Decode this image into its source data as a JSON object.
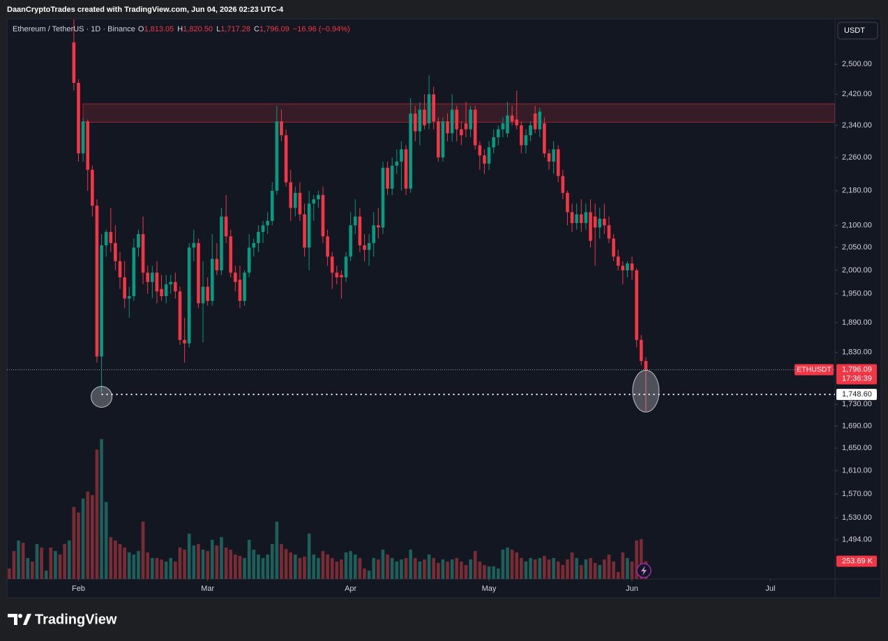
{
  "header": {
    "credit": "DaanCryptoTrades created with TradingView.com, Jun 04, 2026 02:23 UTC-4"
  },
  "brand": "TradingView",
  "chart_data": {
    "type": "candlestick",
    "title": "Ethereum / TetherUS · 1D · Binance",
    "legend": [
      {
        "key": "O",
        "value": 1813.05,
        "label": "1,813.05"
      },
      {
        "key": "H",
        "value": 1820.5,
        "label": "1,820.50"
      },
      {
        "key": "L",
        "value": 1717.28,
        "label": "1,717.28"
      },
      {
        "key": "C",
        "value": 1796.09,
        "label": "1,796.09"
      }
    ],
    "change": {
      "value": -16.96,
      "label": "−16.96"
    },
    "change_pct": {
      "value": -0.94,
      "label": "(−0.94%)"
    },
    "currency": "USDT",
    "symbol": "ETHUSDT",
    "countdown": "17:36:39",
    "last_price": {
      "value": 1796.09,
      "label": "1,796.09"
    },
    "level": {
      "value": 1748.6,
      "label": "1,748.60"
    },
    "zone": {
      "low": 2348,
      "high": 2395,
      "from": 16
    },
    "highlighted_candles": [
      20,
      138
    ],
    "up_color": "#089981",
    "down_color": "#f23645",
    "log": true,
    "grid": false,
    "xlim": [
      -0.5,
      179
    ],
    "ylim": [
      1432,
      2624
    ],
    "xticks": [
      {
        "value": 15,
        "label": "Feb"
      },
      {
        "value": 43,
        "label": "Mar"
      },
      {
        "value": 74,
        "label": "Apr"
      },
      {
        "value": 104,
        "label": "May"
      },
      {
        "value": 135,
        "label": "Jun"
      },
      {
        "value": 165,
        "label": "Jul"
      }
    ],
    "yticks": [
      {
        "value": 2500,
        "label": "2,500.00"
      },
      {
        "value": 2420,
        "label": "2,420.00"
      },
      {
        "value": 2340,
        "label": "2,340.00"
      },
      {
        "value": 2260,
        "label": "2,260.00"
      },
      {
        "value": 2180,
        "label": "2,180.00"
      },
      {
        "value": 2100,
        "label": "2,100.00"
      },
      {
        "value": 2050,
        "label": "2,050.00"
      },
      {
        "value": 2000,
        "label": "2,000.00"
      },
      {
        "value": 1950,
        "label": "1,950.00"
      },
      {
        "value": 1890,
        "label": "1,890.00"
      },
      {
        "value": 1830,
        "label": "1,830.00"
      },
      {
        "value": 1730,
        "label": "1,730.00"
      },
      {
        "value": 1690,
        "label": "1,690.00"
      },
      {
        "value": 1650,
        "label": "1,650.00"
      },
      {
        "value": 1610,
        "label": "1,610.00"
      },
      {
        "value": 1570,
        "label": "1,570.00"
      },
      {
        "value": 1530,
        "label": "1,530.00"
      },
      {
        "value": 1494,
        "label": "1,494.00"
      }
    ],
    "open": [
      null,
      null,
      null,
      null,
      null,
      null,
      null,
      null,
      null,
      null,
      null,
      null,
      null,
      null,
      2560,
      2450,
      2270,
      2350,
      2230,
      2145,
      1822,
      2055,
      2085,
      2060,
      2020,
      1985,
      1940,
      1945,
      2050,
      2080,
      1995,
      1975,
      1995,
      1960,
      1945,
      1970,
      1975,
      1955,
      1855,
      1848,
      2050,
      2060,
      1930,
      1965,
      1935,
      2025,
      2000,
      2120,
      2075,
      1995,
      1980,
      1935,
      1995,
      2050,
      2060,
      2085,
      2100,
      2110,
      2180,
      2350,
      2315,
      2200,
      2140,
      2175,
      2125,
      2050,
      2150,
      2160,
      2170,
      2075,
      2030,
      1995,
      1990,
      1985,
      2030,
      2100,
      2120,
      2055,
      2045,
      2060,
      2100,
      2095,
      2235,
      2185,
      2240,
      2250,
      2280,
      2185,
      2370,
      2325,
      2380,
      2345,
      2420,
      2350,
      2260,
      2350,
      2320,
      2380,
      2330,
      2345,
      2330,
      2380,
      2290,
      2265,
      2245,
      2285,
      2310,
      2330,
      2320,
      2365,
      2355,
      2340,
      2290,
      2315,
      2370,
      2330,
      2345,
      2270,
      2250,
      2280,
      2215,
      2175,
      2130,
      2105,
      2125,
      2105,
      2130,
      2120,
      2095,
      2115,
      2100,
      2070,
      2030,
      2010,
      2000,
      2015,
      2000,
      1855,
      1813.05
    ],
    "high": [
      null,
      null,
      null,
      null,
      null,
      null,
      null,
      null,
      null,
      null,
      null,
      null,
      null,
      null,
      2650,
      2460,
      2360,
      2355,
      2240,
      2160,
      2080,
      2090,
      2140,
      2100,
      2040,
      2020,
      1965,
      2070,
      2090,
      2120,
      2010,
      2010,
      2020,
      1990,
      1990,
      1990,
      1995,
      1965,
      1900,
      2060,
      2090,
      2070,
      2020,
      1985,
      2080,
      2060,
      2140,
      2170,
      2090,
      2010,
      2010,
      2000,
      2080,
      2070,
      2100,
      2110,
      2130,
      2200,
      2390,
      2380,
      2330,
      2230,
      2190,
      2200,
      2150,
      2180,
      2170,
      2180,
      2190,
      2090,
      2040,
      2010,
      2000,
      2040,
      2130,
      2160,
      2140,
      2080,
      2080,
      2130,
      2140,
      2250,
      2250,
      2260,
      2280,
      2300,
      2290,
      2410,
      2390,
      2400,
      2420,
      2470,
      2440,
      2360,
      2360,
      2370,
      2420,
      2390,
      2350,
      2400,
      2390,
      2390,
      2300,
      2280,
      2300,
      2330,
      2340,
      2360,
      2400,
      2390,
      2430,
      2350,
      2330,
      2350,
      2390,
      2385,
      2360,
      2280,
      2300,
      2290,
      2230,
      2180,
      2150,
      2150,
      2160,
      2150,
      2160,
      2150,
      2140,
      2150,
      2120,
      2080,
      2045,
      2020,
      2020,
      2030,
      2005,
      1865,
      1820.5
    ],
    "low": [
      null,
      null,
      null,
      null,
      null,
      null,
      null,
      null,
      null,
      null,
      null,
      null,
      null,
      null,
      2430,
      2250,
      2250,
      2180,
      2120,
      1810,
      1752,
      2030,
      2040,
      2000,
      1960,
      1920,
      1900,
      1935,
      2030,
      1970,
      1950,
      1940,
      1930,
      1935,
      1930,
      1950,
      1940,
      1845,
      1810,
      1840,
      2020,
      1920,
      1850,
      1925,
      1925,
      1990,
      1990,
      2060,
      1985,
      1955,
      1920,
      1925,
      1985,
      2030,
      2040,
      2060,
      2080,
      2100,
      2170,
      2300,
      2190,
      2110,
      2120,
      2110,
      2030,
      2000,
      2110,
      2140,
      2060,
      2010,
      1960,
      1970,
      1940,
      1975,
      2020,
      2080,
      2040,
      2020,
      2010,
      2030,
      2070,
      2080,
      2170,
      2170,
      2220,
      2180,
      2170,
      2175,
      2300,
      2290,
      2330,
      2330,
      2330,
      2250,
      2250,
      2300,
      2300,
      2300,
      2290,
      2310,
      2310,
      2280,
      2230,
      2220,
      2230,
      2270,
      2290,
      2310,
      2310,
      2340,
      2330,
      2270,
      2270,
      2300,
      2320,
      2310,
      2260,
      2230,
      2220,
      2200,
      2160,
      2100,
      2085,
      2090,
      2085,
      2090,
      2050,
      2010,
      2070,
      2080,
      2060,
      2020,
      2000,
      1970,
      1985,
      1980,
      1840,
      1805,
      1717.28
    ],
    "close": [
      null,
      null,
      null,
      null,
      null,
      null,
      null,
      null,
      null,
      null,
      null,
      null,
      null,
      null,
      2450,
      2270,
      2350,
      2230,
      2145,
      1822,
      2055,
      2085,
      2060,
      2020,
      1985,
      1940,
      1945,
      2050,
      2080,
      1995,
      1975,
      1995,
      1955,
      1945,
      1970,
      1975,
      1955,
      1855,
      1848,
      2050,
      2060,
      1930,
      1965,
      1935,
      2025,
      2000,
      2120,
      2075,
      1995,
      1975,
      1935,
      1995,
      2050,
      2060,
      2085,
      2100,
      2110,
      2180,
      2350,
      2315,
      2200,
      2140,
      2175,
      2125,
      2050,
      2150,
      2160,
      2170,
      2075,
      2030,
      1995,
      1985,
      1985,
      2030,
      2100,
      2120,
      2055,
      2045,
      2060,
      2100,
      2095,
      2235,
      2185,
      2240,
      2250,
      2280,
      2185,
      2370,
      2325,
      2380,
      2340,
      2420,
      2350,
      2260,
      2350,
      2320,
      2380,
      2330,
      2315,
      2330,
      2380,
      2290,
      2265,
      2245,
      2285,
      2310,
      2330,
      2345,
      2365,
      2350,
      2340,
      2290,
      2315,
      2340,
      2330,
      2375,
      2270,
      2250,
      2280,
      2215,
      2175,
      2130,
      2105,
      2125,
      2105,
      2130,
      2065,
      2095,
      2115,
      2100,
      2070,
      2030,
      2010,
      2000,
      2015,
      2000,
      1855,
      1813.05,
      1796.09
    ],
    "volume": {
      "values": [
        150,
        400,
        550,
        520,
        300,
        250,
        500,
        450,
        120,
        450,
        400,
        350,
        500,
        550,
        1030,
        950,
        1150,
        1250,
        1200,
        1850,
        2000,
        1100,
        600,
        550,
        500,
        450,
        380,
        350,
        400,
        820,
        380,
        300,
        300,
        280,
        250,
        300,
        250,
        450,
        420,
        650,
        480,
        500,
        420,
        400,
        560,
        480,
        600,
        450,
        420,
        350,
        330,
        300,
        560,
        420,
        350,
        300,
        350,
        500,
        820,
        500,
        430,
        380,
        350,
        300,
        320,
        650,
        350,
        300,
        400,
        350,
        300,
        250,
        280,
        380,
        400,
        350,
        300,
        150,
        120,
        300,
        280,
        420,
        350,
        300,
        250,
        280,
        300,
        420,
        300,
        250,
        280,
        350,
        300,
        230,
        280,
        250,
        280,
        300,
        250,
        200,
        280,
        400,
        250,
        200,
        180,
        180,
        150,
        420,
        450,
        420,
        380,
        300,
        250,
        300,
        280,
        300,
        330,
        280,
        300,
        250,
        200,
        280,
        380,
        300,
        200,
        280,
        300,
        230,
        200,
        280,
        350,
        250,
        100,
        380,
        300,
        250,
        550,
        570,
        253.69
      ],
      "pre_up": [
        false,
        false,
        true,
        false,
        true,
        false,
        true,
        false,
        true,
        false,
        true,
        false,
        false,
        true
      ],
      "ylim": [
        0,
        8000
      ],
      "up_color": "#1d5f5b",
      "down_color": "#7a2c34",
      "last": {
        "value": 253.69,
        "label": "253.69 K"
      }
    }
  }
}
